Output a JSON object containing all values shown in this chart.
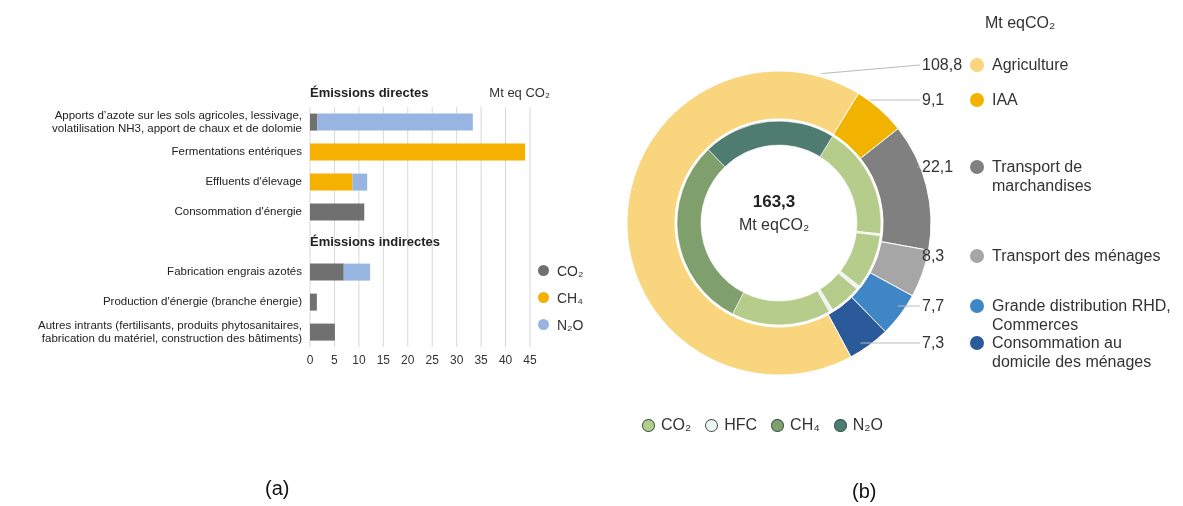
{
  "chart_data": [
    {
      "type": "bar",
      "orientation": "horizontal",
      "stacked": true,
      "xlabel": "Mt eq CO₂",
      "categories": [
        "Apports d’azote sur les sols agricoles, lessivage, volatilisation NH3, apport de chaux et de dolomie",
        "Fermentations entériques",
        "Effluents d'élevage",
        "Consommation d'énergie",
        null,
        "Fabrication engrais azotés",
        "Production d'énergie (branche énergie)",
        "Autres intrants (fertilisants, produits phytosanitaires, fabrication du matériel, construction des bâtiments)"
      ],
      "series": [
        {
          "name": "CO₂",
          "color": "#707070",
          "values": [
            1.5,
            null,
            null,
            11.1,
            null,
            6.9,
            1.4,
            5.1
          ]
        },
        {
          "name": "CH₄",
          "color": "#f5b000",
          "values": [
            null,
            44,
            8.7,
            null,
            null,
            null,
            null,
            null
          ]
        },
        {
          "name": "N₂O",
          "color": "#98b4e0",
          "values": [
            31.8,
            null,
            3,
            null,
            null,
            5.4,
            null,
            null
          ]
        }
      ],
      "xlim": [
        0,
        45
      ],
      "xticks": [
        0,
        5,
        10,
        15,
        20,
        25,
        30,
        35,
        40,
        45
      ],
      "grid": "x",
      "legend": "right",
      "annotations": [
        "Émissions directes",
        "Émissions indirectes",
        "(a)"
      ]
    },
    {
      "type": "donut",
      "categories": [
        "Agriculture",
        "IAA",
        "Transport de marchandises",
        "Transport des ménages",
        "Grande distribution RHD, Commerces",
        "Consommation au domicile des ménages"
      ],
      "values": [
        108.8,
        9.1,
        22.1,
        8.3,
        7.7,
        7.3
      ],
      "value_labels": [
        "108,8",
        "9,1",
        "22,1",
        "8,3",
        "7,7",
        "7,3"
      ],
      "colors": [
        "#f9d57e",
        "#f2b300",
        "#808080",
        "#a6a6a6",
        "#3f86c6",
        "#2a5a9a"
      ],
      "legend": "right",
      "annotations": [
        "Mt eqCO₂",
        "163,3",
        "Mt eqCO₂",
        "(b)"
      ]
    },
    {
      "type": "donut",
      "categories": [
        "CO₂",
        null,
        null,
        null,
        null,
        "HFC",
        null,
        "CH₄",
        "N₂O"
      ],
      "values": [
        17.9,
        0.3,
        8.6,
        0.6,
        5,
        0.6,
        15.7,
        30.3,
        21
      ],
      "colors": [
        "#b5cc8a",
        "#eef4f2",
        "#b5cc8a",
        "#eef4f2",
        "#b5cc8a",
        "#eef4f2",
        "#b5cc8a",
        "#7f9f6d",
        "#4e7c70"
      ],
      "legend": "bottom"
    }
  ]
}
